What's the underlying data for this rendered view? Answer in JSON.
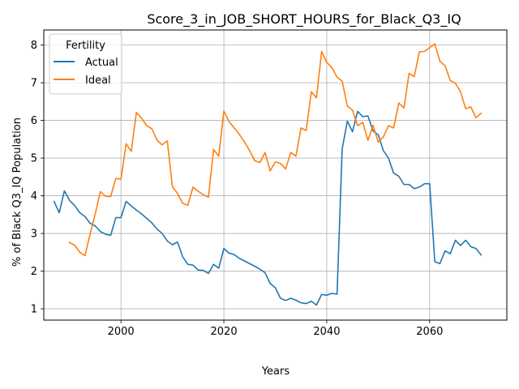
{
  "chart_data": {
    "type": "line",
    "title": "Score_3_in_JOB_SHORT_HOURS_for_Black_Q3_IQ",
    "xlabel": "Years",
    "ylabel": "% of Black Q3_IQ Population",
    "xlim": [
      1985,
      2075
    ],
    "ylim": [
      0.7,
      8.4
    ],
    "xticks": [
      2000,
      2020,
      2040,
      2060
    ],
    "yticks": [
      1,
      2,
      3,
      4,
      5,
      6,
      7,
      8
    ],
    "grid": true,
    "legend": {
      "title": "Fertility",
      "placement": "top-left"
    },
    "series": [
      {
        "name": "Actual",
        "color": "#1f77b4",
        "x": [
          1987,
          1988,
          1989,
          1990,
          1991,
          1992,
          1993,
          1994,
          1995,
          1996,
          1997,
          1998,
          1999,
          2000,
          2001,
          2002,
          2003,
          2004,
          2005,
          2006,
          2007,
          2008,
          2009,
          2010,
          2011,
          2012,
          2013,
          2014,
          2015,
          2016,
          2017,
          2018,
          2019,
          2020,
          2021,
          2022,
          2023,
          2024,
          2025,
          2026,
          2027,
          2028,
          2029,
          2030,
          2031,
          2032,
          2033,
          2034,
          2035,
          2036,
          2037,
          2038,
          2039,
          2040,
          2041,
          2042,
          2043,
          2044,
          2045,
          2046,
          2047,
          2048,
          2049,
          2050,
          2051,
          2052,
          2053,
          2054,
          2055,
          2056,
          2057,
          2058,
          2059,
          2060,
          2061,
          2062,
          2063,
          2064,
          2065,
          2066,
          2067,
          2068,
          2069,
          2070
        ],
        "values": [
          3.85,
          3.55,
          4.13,
          3.88,
          3.74,
          3.55,
          3.45,
          3.27,
          3.2,
          3.05,
          2.98,
          2.95,
          3.42,
          3.42,
          3.85,
          3.73,
          3.62,
          3.52,
          3.4,
          3.28,
          3.12,
          3.0,
          2.8,
          2.7,
          2.77,
          2.38,
          2.18,
          2.16,
          2.03,
          2.02,
          1.94,
          2.18,
          2.08,
          2.6,
          2.48,
          2.44,
          2.34,
          2.27,
          2.2,
          2.13,
          2.05,
          1.96,
          1.67,
          1.56,
          1.28,
          1.22,
          1.28,
          1.23,
          1.16,
          1.14,
          1.2,
          1.1,
          1.38,
          1.36,
          1.41,
          1.39,
          5.25,
          5.98,
          5.7,
          6.24,
          6.1,
          6.12,
          5.72,
          5.62,
          5.2,
          5.0,
          4.6,
          4.52,
          4.3,
          4.3,
          4.19,
          4.23,
          4.32,
          4.32,
          2.25,
          2.2,
          2.54,
          2.46,
          2.82,
          2.68,
          2.82,
          2.65,
          2.6,
          2.43
        ]
      },
      {
        "name": "Ideal",
        "color": "#ff7f0e",
        "x": [
          1990,
          1991,
          1992,
          1993,
          1994,
          1995,
          1996,
          1997,
          1998,
          1999,
          2000,
          2001,
          2002,
          2003,
          2004,
          2005,
          2006,
          2007,
          2008,
          2009,
          2010,
          2011,
          2012,
          2013,
          2014,
          2015,
          2016,
          2017,
          2018,
          2019,
          2020,
          2021,
          2022,
          2023,
          2024,
          2025,
          2026,
          2027,
          2028,
          2029,
          2030,
          2031,
          2032,
          2033,
          2034,
          2035,
          2036,
          2037,
          2038,
          2039,
          2040,
          2041,
          2042,
          2043,
          2044,
          2045,
          2046,
          2047,
          2048,
          2049,
          2050,
          2051,
          2052,
          2053,
          2054,
          2055,
          2056,
          2057,
          2058,
          2059,
          2060,
          2061,
          2062,
          2063,
          2064,
          2065,
          2066,
          2067,
          2068,
          2069,
          2070
        ],
        "values": [
          2.76,
          2.69,
          2.5,
          2.41,
          2.98,
          3.52,
          4.11,
          3.99,
          3.98,
          4.46,
          4.44,
          5.38,
          5.18,
          6.21,
          6.06,
          5.86,
          5.78,
          5.48,
          5.35,
          5.46,
          4.24,
          4.06,
          3.8,
          3.75,
          4.23,
          4.12,
          4.03,
          3.96,
          5.23,
          5.05,
          6.25,
          5.97,
          5.8,
          5.63,
          5.43,
          5.2,
          4.93,
          4.88,
          5.15,
          4.66,
          4.9,
          4.86,
          4.71,
          5.15,
          5.05,
          5.8,
          5.73,
          6.76,
          6.6,
          7.83,
          7.54,
          7.4,
          7.15,
          7.04,
          6.38,
          6.27,
          5.86,
          5.95,
          5.47,
          5.87,
          5.42,
          5.56,
          5.86,
          5.8,
          6.46,
          6.33,
          7.25,
          7.16,
          7.82,
          7.83,
          7.93,
          8.03,
          7.57,
          7.45,
          7.06,
          6.99,
          6.76,
          6.31,
          6.36,
          6.07,
          6.19
        ]
      }
    ]
  }
}
